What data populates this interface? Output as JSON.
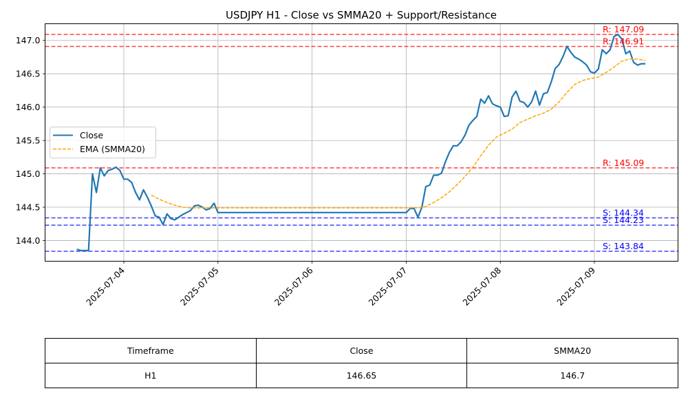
{
  "chart_data": {
    "type": "line",
    "title": "USDJPY H1 - Close vs SMMA20 + Support/Resistance",
    "xlabel": "",
    "ylabel": "",
    "x_ticks": [
      "2025-07-04",
      "2025-07-05",
      "2025-07-06",
      "2025-07-07",
      "2025-07-08",
      "2025-07-09"
    ],
    "y_ticks": [
      "144.0",
      "144.5",
      "145.0",
      "145.5",
      "146.0",
      "146.5",
      "147.0"
    ],
    "ylim": [
      143.69,
      147.25
    ],
    "grid": true,
    "legend_position": "center-left",
    "series": [
      {
        "name": "Close",
        "color": "#1f77b4",
        "style": "solid",
        "points": [
          [
            "2025-07-03 12:00",
            143.87
          ],
          [
            "2025-07-03 13:00",
            143.85
          ],
          [
            "2025-07-03 14:00",
            143.85
          ],
          [
            "2025-07-03 15:00",
            143.85
          ],
          [
            "2025-07-03 16:00",
            145.0
          ],
          [
            "2025-07-03 17:00",
            144.72
          ],
          [
            "2025-07-03 18:00",
            145.09
          ],
          [
            "2025-07-03 19:00",
            144.97
          ],
          [
            "2025-07-03 20:00",
            145.05
          ],
          [
            "2025-07-03 21:00",
            145.07
          ],
          [
            "2025-07-03 22:00",
            145.1
          ],
          [
            "2025-07-03 23:00",
            145.05
          ],
          [
            "2025-07-04 00:00",
            144.92
          ],
          [
            "2025-07-04 01:00",
            144.92
          ],
          [
            "2025-07-04 02:00",
            144.87
          ],
          [
            "2025-07-04 03:00",
            144.72
          ],
          [
            "2025-07-04 04:00",
            144.61
          ],
          [
            "2025-07-04 05:00",
            144.76
          ],
          [
            "2025-07-04 06:00",
            144.65
          ],
          [
            "2025-07-04 07:00",
            144.52
          ],
          [
            "2025-07-04 08:00",
            144.37
          ],
          [
            "2025-07-04 09:00",
            144.35
          ],
          [
            "2025-07-04 10:00",
            144.24
          ],
          [
            "2025-07-04 11:00",
            144.4
          ],
          [
            "2025-07-04 12:00",
            144.33
          ],
          [
            "2025-07-04 13:00",
            144.31
          ],
          [
            "2025-07-04 14:00",
            144.35
          ],
          [
            "2025-07-04 15:00",
            144.39
          ],
          [
            "2025-07-04 16:00",
            144.42
          ],
          [
            "2025-07-04 17:00",
            144.45
          ],
          [
            "2025-07-04 18:00",
            144.52
          ],
          [
            "2025-07-04 19:00",
            144.53
          ],
          [
            "2025-07-04 20:00",
            144.5
          ],
          [
            "2025-07-04 21:00",
            144.46
          ],
          [
            "2025-07-04 22:00",
            144.48
          ],
          [
            "2025-07-04 23:00",
            144.56
          ],
          [
            "2025-07-05 00:00",
            144.42
          ],
          [
            "2025-07-07 00:00",
            144.42
          ],
          [
            "2025-07-07 01:00",
            144.48
          ],
          [
            "2025-07-07 02:00",
            144.48
          ],
          [
            "2025-07-07 03:00",
            144.35
          ],
          [
            "2025-07-07 04:00",
            144.5
          ],
          [
            "2025-07-07 05:00",
            144.81
          ],
          [
            "2025-07-07 06:00",
            144.83
          ],
          [
            "2025-07-07 07:00",
            144.98
          ],
          [
            "2025-07-07 08:00",
            144.98
          ],
          [
            "2025-07-07 09:00",
            145.01
          ],
          [
            "2025-07-07 10:00",
            145.18
          ],
          [
            "2025-07-07 11:00",
            145.32
          ],
          [
            "2025-07-07 12:00",
            145.42
          ],
          [
            "2025-07-07 13:00",
            145.42
          ],
          [
            "2025-07-07 14:00",
            145.48
          ],
          [
            "2025-07-07 15:00",
            145.58
          ],
          [
            "2025-07-07 16:00",
            145.73
          ],
          [
            "2025-07-07 17:00",
            145.8
          ],
          [
            "2025-07-07 18:00",
            145.86
          ],
          [
            "2025-07-07 19:00",
            146.12
          ],
          [
            "2025-07-07 20:00",
            146.06
          ],
          [
            "2025-07-07 21:00",
            146.17
          ],
          [
            "2025-07-07 22:00",
            146.05
          ],
          [
            "2025-07-07 23:00",
            146.02
          ],
          [
            "2025-07-08 00:00",
            146.0
          ],
          [
            "2025-07-08 01:00",
            145.86
          ],
          [
            "2025-07-08 02:00",
            145.87
          ],
          [
            "2025-07-08 03:00",
            146.15
          ],
          [
            "2025-07-08 04:00",
            146.24
          ],
          [
            "2025-07-08 05:00",
            146.09
          ],
          [
            "2025-07-08 06:00",
            146.07
          ],
          [
            "2025-07-08 07:00",
            146.0
          ],
          [
            "2025-07-08 08:00",
            146.08
          ],
          [
            "2025-07-08 09:00",
            146.24
          ],
          [
            "2025-07-08 10:00",
            146.03
          ],
          [
            "2025-07-08 11:00",
            146.2
          ],
          [
            "2025-07-08 12:00",
            146.22
          ],
          [
            "2025-07-08 13:00",
            146.38
          ],
          [
            "2025-07-08 14:00",
            146.58
          ],
          [
            "2025-07-08 15:00",
            146.64
          ],
          [
            "2025-07-08 16:00",
            146.76
          ],
          [
            "2025-07-08 17:00",
            146.91
          ],
          [
            "2025-07-08 18:00",
            146.82
          ],
          [
            "2025-07-08 19:00",
            146.75
          ],
          [
            "2025-07-08 20:00",
            146.72
          ],
          [
            "2025-07-08 21:00",
            146.68
          ],
          [
            "2025-07-08 22:00",
            146.63
          ],
          [
            "2025-07-08 23:00",
            146.53
          ],
          [
            "2025-07-09 00:00",
            146.51
          ],
          [
            "2025-07-09 01:00",
            146.57
          ],
          [
            "2025-07-09 02:00",
            146.86
          ],
          [
            "2025-07-09 03:00",
            146.8
          ],
          [
            "2025-07-09 04:00",
            146.86
          ],
          [
            "2025-07-09 05:00",
            147.06
          ],
          [
            "2025-07-09 06:00",
            147.09
          ],
          [
            "2025-07-09 07:00",
            147.02
          ],
          [
            "2025-07-09 08:00",
            146.8
          ],
          [
            "2025-07-09 09:00",
            146.84
          ],
          [
            "2025-07-09 10:00",
            146.67
          ],
          [
            "2025-07-09 11:00",
            146.63
          ],
          [
            "2025-07-09 12:00",
            146.65
          ],
          [
            "2025-07-09 13:00",
            146.65
          ]
        ]
      },
      {
        "name": "EMA (SMMA20)",
        "color": "#ffa500",
        "style": "dashed",
        "points": [
          [
            "2025-07-04 07:00",
            144.68
          ],
          [
            "2025-07-04 09:00",
            144.62
          ],
          [
            "2025-07-04 11:00",
            144.57
          ],
          [
            "2025-07-04 13:00",
            144.53
          ],
          [
            "2025-07-04 15:00",
            144.5
          ],
          [
            "2025-07-04 17:00",
            144.49
          ],
          [
            "2025-07-04 19:00",
            144.49
          ],
          [
            "2025-07-04 21:00",
            144.49
          ],
          [
            "2025-07-04 23:00",
            144.49
          ],
          [
            "2025-07-05 00:00",
            144.49
          ],
          [
            "2025-07-07 00:00",
            144.49
          ],
          [
            "2025-07-07 03:00",
            144.49
          ],
          [
            "2025-07-07 05:00",
            144.51
          ],
          [
            "2025-07-07 07:00",
            144.57
          ],
          [
            "2025-07-07 09:00",
            144.64
          ],
          [
            "2025-07-07 11:00",
            144.73
          ],
          [
            "2025-07-07 13:00",
            144.84
          ],
          [
            "2025-07-07 15:00",
            144.96
          ],
          [
            "2025-07-07 17:00",
            145.1
          ],
          [
            "2025-07-07 19:00",
            145.27
          ],
          [
            "2025-07-07 21:00",
            145.43
          ],
          [
            "2025-07-07 23:00",
            145.55
          ],
          [
            "2025-07-08 01:00",
            145.61
          ],
          [
            "2025-07-08 03:00",
            145.67
          ],
          [
            "2025-07-08 05:00",
            145.77
          ],
          [
            "2025-07-08 07:00",
            145.82
          ],
          [
            "2025-07-08 09:00",
            145.87
          ],
          [
            "2025-07-08 11:00",
            145.91
          ],
          [
            "2025-07-08 13:00",
            145.97
          ],
          [
            "2025-07-08 15:00",
            146.08
          ],
          [
            "2025-07-08 17:00",
            146.22
          ],
          [
            "2025-07-08 19:00",
            146.34
          ],
          [
            "2025-07-08 21:00",
            146.4
          ],
          [
            "2025-07-08 23:00",
            146.43
          ],
          [
            "2025-07-09 01:00",
            146.45
          ],
          [
            "2025-07-09 03:00",
            146.52
          ],
          [
            "2025-07-09 05:00",
            146.6
          ],
          [
            "2025-07-09 07:00",
            146.69
          ],
          [
            "2025-07-09 09:00",
            146.72
          ],
          [
            "2025-07-09 11:00",
            146.72
          ],
          [
            "2025-07-09 13:00",
            146.7
          ]
        ]
      }
    ],
    "levels": [
      {
        "kind": "resistance",
        "value": 147.09,
        "label": "R: 147.09",
        "color": "#ff0000"
      },
      {
        "kind": "resistance",
        "value": 146.91,
        "label": "R: 146.91",
        "color": "#ff0000"
      },
      {
        "kind": "resistance",
        "value": 145.09,
        "label": "R: 145.09",
        "color": "#ff0000"
      },
      {
        "kind": "support",
        "value": 144.34,
        "label": "S: 144.34",
        "color": "#0000ff"
      },
      {
        "kind": "support",
        "value": 144.23,
        "label": "S: 144.23",
        "color": "#0000ff"
      },
      {
        "kind": "support",
        "value": 143.84,
        "label": "S: 143.84",
        "color": "#0000ff"
      }
    ]
  },
  "table": {
    "headers": [
      "Timeframe",
      "Close",
      "SMMA20"
    ],
    "rows": [
      [
        "H1",
        "146.65",
        "146.7"
      ]
    ]
  }
}
